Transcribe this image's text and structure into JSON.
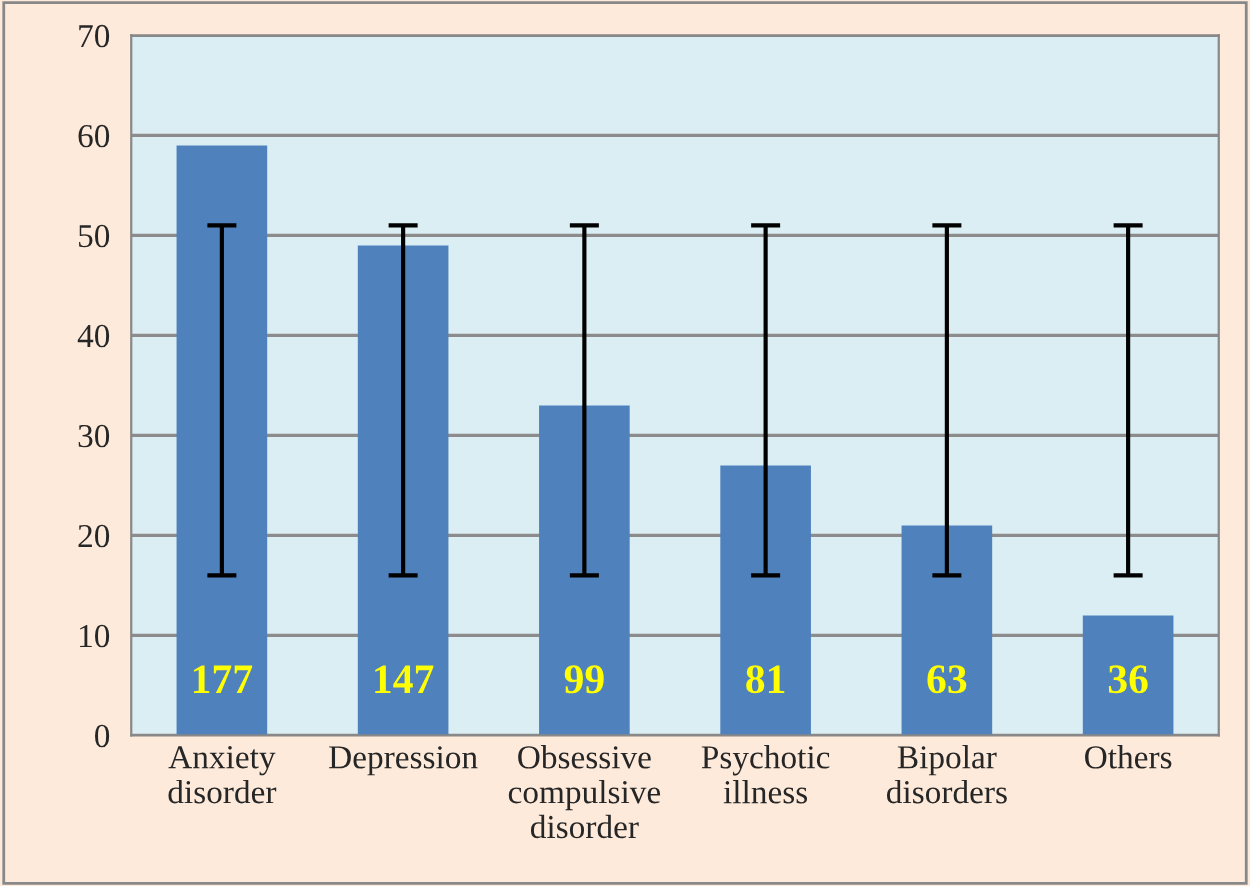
{
  "chart_data": {
    "type": "bar",
    "categories": [
      "Anxiety disorder",
      "Depression",
      "Obsessive compulsive disorder",
      "Psychotic illness",
      "Bipolar disorders",
      "Others"
    ],
    "values": [
      59,
      49,
      33,
      27,
      21,
      12
    ],
    "annotations": [
      "177",
      "147",
      "99",
      "81",
      "63",
      "36"
    ],
    "errors": [
      [
        16,
        51
      ],
      [
        16,
        51
      ],
      [
        16,
        51
      ],
      [
        16,
        51
      ],
      [
        16,
        51
      ],
      [
        16,
        51
      ]
    ],
    "color": "#4f81bd",
    "ylim": [
      0,
      70
    ],
    "yticks": [
      0,
      10,
      20,
      30,
      40,
      50,
      60,
      70
    ],
    "grid": "y"
  }
}
